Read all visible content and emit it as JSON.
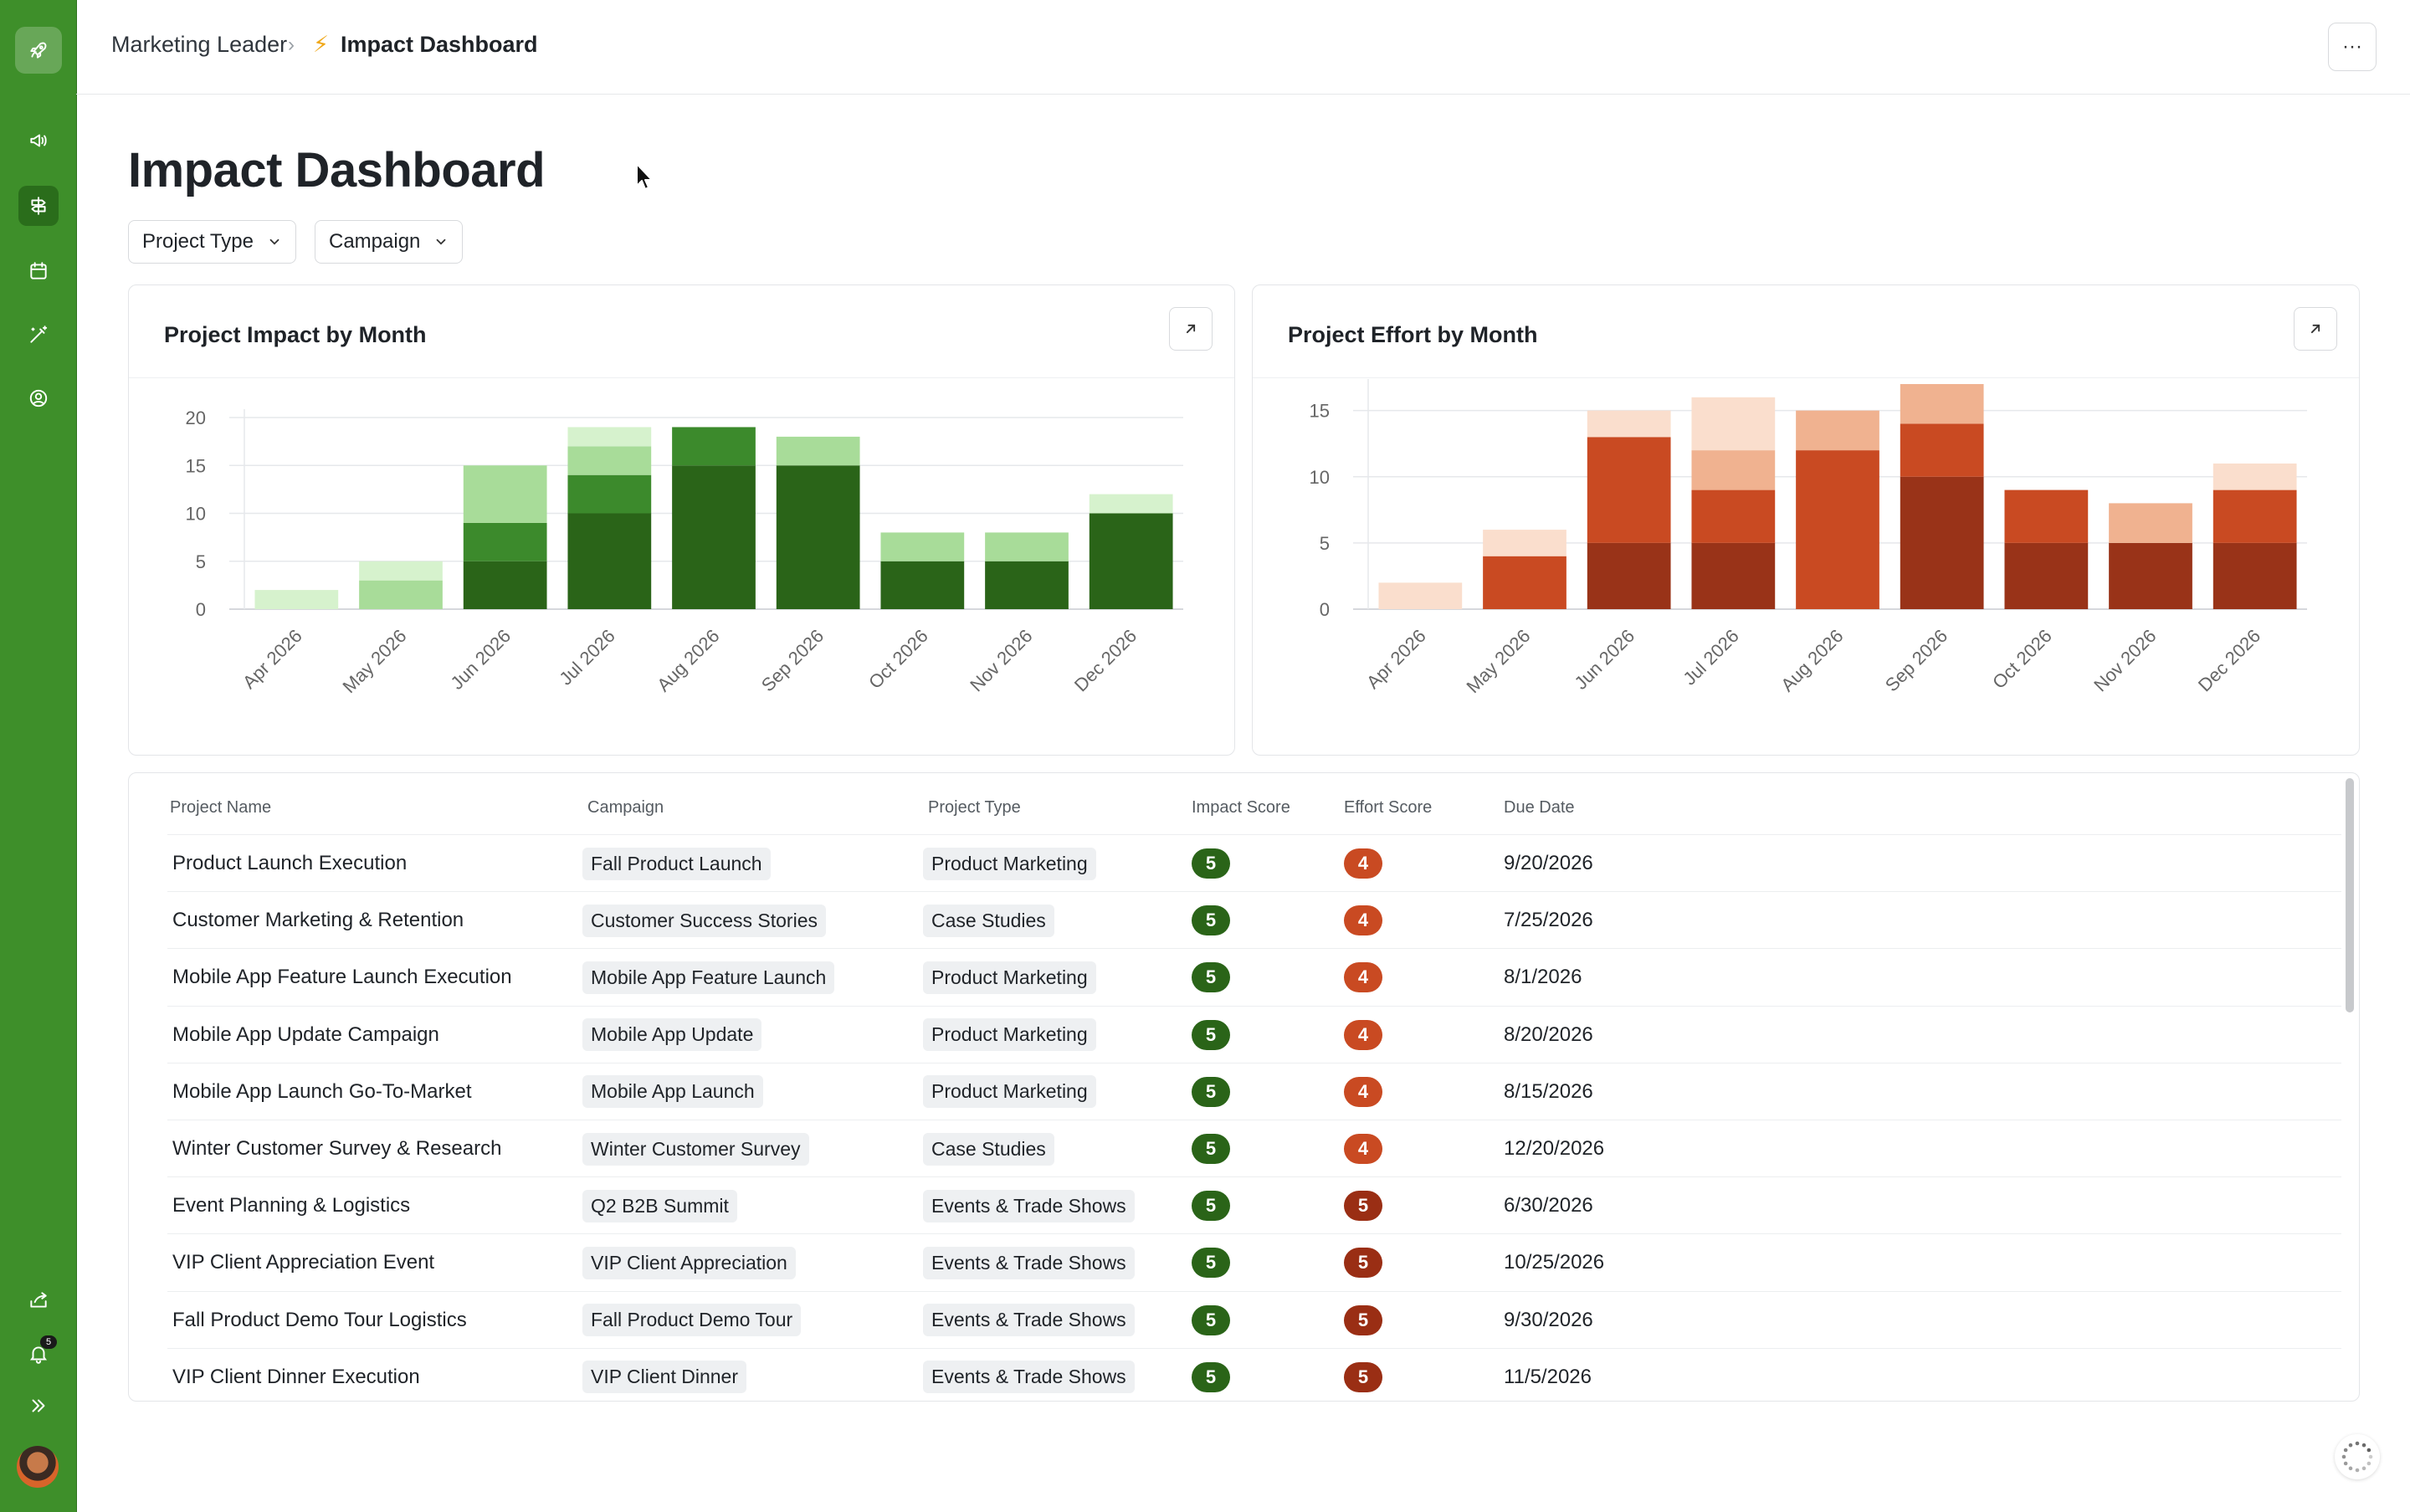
{
  "breadcrumb": {
    "parent": "Marketing Leader",
    "separator": "›",
    "bolt": "⚡",
    "current": "Impact Dashboard"
  },
  "more_label": "···",
  "page_title": "Impact Dashboard",
  "filters": [
    {
      "label": "Project Type"
    },
    {
      "label": "Campaign"
    }
  ],
  "sidebar": {
    "items": [
      {
        "icon": "rocket-icon"
      },
      {
        "icon": "megaphone-icon"
      },
      {
        "icon": "signpost-icon"
      },
      {
        "icon": "calendar-icon"
      },
      {
        "icon": "magic-wand-icon"
      },
      {
        "icon": "user-circle-icon"
      },
      {
        "icon": "share-icon"
      },
      {
        "icon": "bell-icon"
      },
      {
        "icon": "expand-icon"
      }
    ],
    "notification_count": "5"
  },
  "colors": {
    "sidebar": "#3e8f2a",
    "impact_series": [
      "#2a6418",
      "#3c8a2c",
      "#a8dc99",
      "#d6f2cd"
    ],
    "effort_series": [
      "#993318",
      "#c94a22",
      "#f0b290",
      "#fadecd"
    ],
    "impact_badge": "#2a6418",
    "effort_4": "#c94a22",
    "effort_5": "#9a2e14"
  },
  "impact_chart": {
    "title": "Project Impact by Month",
    "type": "bar",
    "stacked": true,
    "categories": [
      "Apr 2026",
      "May 2026",
      "Jun 2026",
      "Jul 2026",
      "Aug 2026",
      "Sep 2026",
      "Oct 2026",
      "Nov 2026",
      "Dec 2026"
    ],
    "series": [
      {
        "values": [
          0,
          0,
          5,
          10,
          15,
          15,
          5,
          5,
          10
        ]
      },
      {
        "values": [
          0,
          0,
          4,
          4,
          4,
          0,
          0,
          0,
          0
        ]
      },
      {
        "values": [
          0,
          3,
          6,
          3,
          0,
          3,
          3,
          3,
          0
        ]
      },
      {
        "values": [
          2,
          2,
          0,
          2,
          0,
          0,
          0,
          0,
          2
        ]
      }
    ],
    "yticks": [
      "0",
      "5",
      "10",
      "15",
      "20"
    ],
    "ylim": [
      0,
      20
    ]
  },
  "effort_chart": {
    "title": "Project Effort by Month",
    "type": "bar",
    "stacked": true,
    "categories": [
      "Apr 2026",
      "May 2026",
      "Jun 2026",
      "Jul 2026",
      "Aug 2026",
      "Sep 2026",
      "Oct 2026",
      "Nov 2026",
      "Dec 2026"
    ],
    "series": [
      {
        "values": [
          0,
          0,
          5,
          5,
          0,
          10,
          5,
          5,
          5
        ]
      },
      {
        "values": [
          0,
          4,
          8,
          4,
          12,
          4,
          4,
          0,
          4
        ]
      },
      {
        "values": [
          0,
          0,
          0,
          3,
          3,
          3,
          0,
          3,
          0
        ]
      },
      {
        "values": [
          2,
          2,
          2,
          4,
          0,
          0,
          0,
          0,
          2
        ]
      }
    ],
    "yticks": [
      "0",
      "5",
      "10",
      "15"
    ],
    "ylim": [
      0,
      17
    ]
  },
  "table": {
    "headers": [
      "Project Name",
      "Campaign",
      "Project Type",
      "Impact Score",
      "Effort Score",
      "Due Date"
    ],
    "rows": [
      {
        "name": "Product Launch Execution",
        "campaign": "Fall Product Launch",
        "type": "Product Marketing",
        "impact": "5",
        "effort": "4",
        "due": "9/20/2026"
      },
      {
        "name": "Customer Marketing & Retention",
        "campaign": "Customer Success Stories",
        "type": "Case Studies",
        "impact": "5",
        "effort": "4",
        "due": "7/25/2026"
      },
      {
        "name": "Mobile App Feature Launch Execution",
        "campaign": "Mobile App Feature Launch",
        "type": "Product Marketing",
        "impact": "5",
        "effort": "4",
        "due": "8/1/2026"
      },
      {
        "name": "Mobile App Update Campaign",
        "campaign": "Mobile App Update",
        "type": "Product Marketing",
        "impact": "5",
        "effort": "4",
        "due": "8/20/2026"
      },
      {
        "name": "Mobile App Launch Go-To-Market",
        "campaign": "Mobile App Launch",
        "type": "Product Marketing",
        "impact": "5",
        "effort": "4",
        "due": "8/15/2026"
      },
      {
        "name": "Winter Customer Survey & Research",
        "campaign": "Winter Customer Survey",
        "type": "Case Studies",
        "impact": "5",
        "effort": "4",
        "due": "12/20/2026"
      },
      {
        "name": "Event Planning & Logistics",
        "campaign": "Q2 B2B Summit",
        "type": "Events & Trade Shows",
        "impact": "5",
        "effort": "5",
        "due": "6/30/2026"
      },
      {
        "name": "VIP Client Appreciation Event",
        "campaign": "VIP Client Appreciation",
        "type": "Events & Trade Shows",
        "impact": "5",
        "effort": "5",
        "due": "10/25/2026"
      },
      {
        "name": "Fall Product Demo Tour Logistics",
        "campaign": "Fall Product Demo Tour",
        "type": "Events & Trade Shows",
        "impact": "5",
        "effort": "5",
        "due": "9/30/2026"
      },
      {
        "name": "VIP Client Dinner Execution",
        "campaign": "VIP Client Dinner",
        "type": "Events & Trade Shows",
        "impact": "5",
        "effort": "5",
        "due": "11/5/2026"
      }
    ]
  },
  "chart_data": [
    {
      "type": "bar",
      "title": "Project Impact by Month",
      "categories": [
        "Apr 2026",
        "May 2026",
        "Jun 2026",
        "Jul 2026",
        "Aug 2026",
        "Sep 2026",
        "Oct 2026",
        "Nov 2026",
        "Dec 2026"
      ],
      "series": [
        {
          "values": [
            0,
            0,
            5,
            10,
            15,
            15,
            5,
            5,
            10
          ]
        },
        {
          "values": [
            0,
            0,
            4,
            4,
            4,
            0,
            0,
            0,
            0
          ]
        },
        {
          "values": [
            0,
            3,
            6,
            3,
            0,
            3,
            3,
            3,
            0
          ]
        },
        {
          "values": [
            2,
            2,
            0,
            2,
            0,
            0,
            0,
            0,
            2
          ]
        }
      ],
      "stacked": true,
      "ylim": [
        0,
        20
      ]
    },
    {
      "type": "bar",
      "title": "Project Effort by Month",
      "categories": [
        "Apr 2026",
        "May 2026",
        "Jun 2026",
        "Jul 2026",
        "Aug 2026",
        "Sep 2026",
        "Oct 2026",
        "Nov 2026",
        "Dec 2026"
      ],
      "series": [
        {
          "values": [
            0,
            0,
            5,
            5,
            0,
            10,
            5,
            5,
            5
          ]
        },
        {
          "values": [
            0,
            4,
            8,
            4,
            12,
            4,
            4,
            0,
            4
          ]
        },
        {
          "values": [
            0,
            0,
            0,
            3,
            3,
            3,
            0,
            3,
            0
          ]
        },
        {
          "values": [
            2,
            2,
            2,
            4,
            0,
            0,
            0,
            0,
            2
          ]
        }
      ],
      "stacked": true,
      "ylim": [
        0,
        17
      ]
    }
  ]
}
